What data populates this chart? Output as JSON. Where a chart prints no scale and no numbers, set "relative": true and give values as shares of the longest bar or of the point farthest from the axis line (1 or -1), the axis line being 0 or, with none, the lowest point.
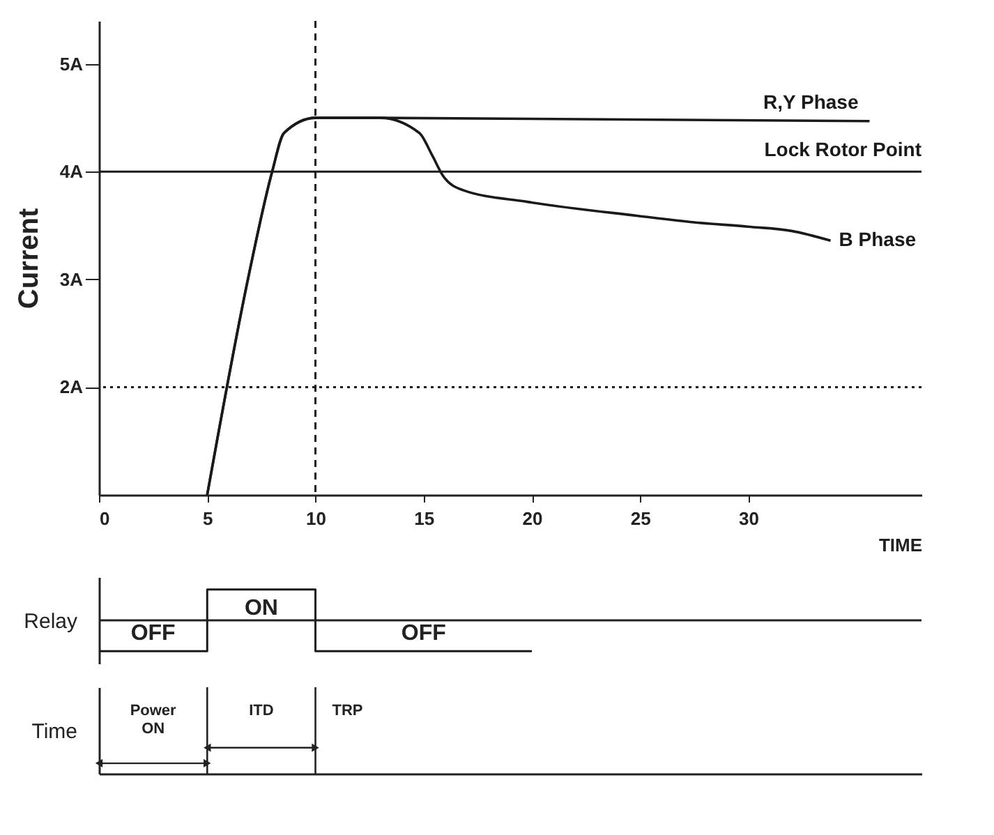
{
  "chart_data": [
    {
      "type": "line",
      "ylabel": "Current",
      "xlabel": "TIME",
      "xlim": [
        0,
        38
      ],
      "ylim": [
        1,
        5.4
      ],
      "xticks": [
        0,
        5,
        10,
        15,
        20,
        25,
        30
      ],
      "yticks": [
        {
          "value": 2,
          "label": "2A"
        },
        {
          "value": 3,
          "label": "3A"
        },
        {
          "value": 4,
          "label": "4A"
        },
        {
          "value": 5,
          "label": "5A"
        }
      ],
      "series": [
        {
          "name": "R,Y Phase",
          "color": "#1a1a1a",
          "x": [
            5,
            6.9,
            8,
            8.55,
            10,
            11.7,
            13,
            35.6
          ],
          "values": [
            1,
            3.02,
            4,
            4.36,
            4.5,
            4.5,
            4.5,
            4.47
          ]
        },
        {
          "name": "B Phase",
          "color": "#1a1a1a",
          "x": [
            5,
            6.9,
            8,
            8.55,
            10,
            11.7,
            13,
            14.8,
            15.4,
            15.9,
            16.8,
            19.8,
            24.9,
            27.5,
            30,
            32,
            33.8
          ],
          "values": [
            1,
            3.02,
            4,
            4.36,
            4.5,
            4.5,
            4.5,
            4.36,
            4.15,
            3.96,
            3.83,
            3.72,
            3.59,
            3.53,
            3.49,
            3.45,
            3.36
          ]
        }
      ],
      "ref_lines": [
        {
          "axis": "y",
          "value": 4,
          "label": "Lock Rotor Point",
          "color": "#1a1a1a",
          "line_style": "solid"
        },
        {
          "axis": "y",
          "value": 2,
          "color": "#1a1a1a",
          "line_style": "dotted"
        },
        {
          "axis": "x",
          "value": 10,
          "color": "#1a1a1a",
          "line_style": "dashed"
        }
      ]
    },
    {
      "type": "step",
      "ylabel": "Relay",
      "xlim": [
        0,
        38
      ],
      "tick_labels": false,
      "relative": true,
      "color": "#1a1a1a",
      "x": [
        0,
        5,
        10,
        20
      ],
      "values": [
        -1,
        1,
        -1,
        -1
      ],
      "annotations": [
        "OFF",
        "ON",
        "OFF"
      ]
    },
    {
      "type": "other",
      "ylabel": "Time",
      "annotations": [
        "Power ON",
        "ITD",
        "TRP"
      ]
    }
  ]
}
